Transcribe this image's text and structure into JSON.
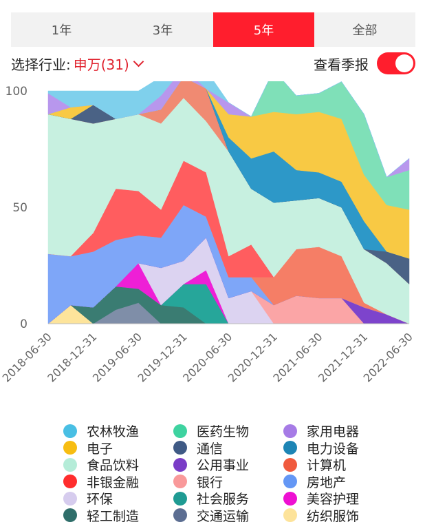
{
  "tabs": [
    {
      "label": "1年",
      "active": false
    },
    {
      "label": "3年",
      "active": false
    },
    {
      "label": "5年",
      "active": true
    },
    {
      "label": "全部",
      "active": false
    }
  ],
  "filter": {
    "label": "选择行业:",
    "industry": "申万(31)",
    "report_label": "查看季报",
    "report_toggle_on": true
  },
  "colors": {
    "accent": "#ff1e2d"
  },
  "chart_data": {
    "type": "area",
    "stacked": true,
    "ylim": [
      0,
      100
    ],
    "yticks": [
      0,
      50,
      100
    ],
    "x": [
      "2018-06-30",
      "2018-09-30",
      "2018-12-31",
      "2019-03-31",
      "2019-06-30",
      "2019-09-30",
      "2019-12-31",
      "2020-03-31",
      "2020-06-30",
      "2020-09-30",
      "2020-12-31",
      "2021-03-31",
      "2021-06-30",
      "2021-09-30",
      "2021-12-31",
      "2022-03-31",
      "2022-06-30"
    ],
    "xticks": [
      "2018-06-30",
      "2018-12-31",
      "2019-06-30",
      "2019-12-31",
      "2020-06-30",
      "2020-12-31",
      "2021-06-30",
      "2021-12-31",
      "2022-06-30"
    ],
    "series": [
      {
        "name": "纺织服饰",
        "color": "#fde49b",
        "values": [
          0,
          8,
          0,
          0,
          0,
          0,
          0,
          0,
          0,
          0,
          0,
          0,
          0,
          0,
          0,
          0,
          0
        ]
      },
      {
        "name": "交通运输",
        "color": "#7f8ea8",
        "values": [
          0,
          0,
          0,
          6,
          9,
          0,
          0,
          0,
          0,
          0,
          0,
          0,
          0,
          0,
          0,
          0,
          0
        ]
      },
      {
        "name": "轻工制造",
        "color": "#3a7c72",
        "values": [
          0,
          0,
          7,
          10,
          6,
          8,
          7,
          0,
          0,
          0,
          0,
          0,
          0,
          0,
          0,
          0,
          0
        ]
      },
      {
        "name": "社会服务",
        "color": "#26a69a",
        "values": [
          0,
          0,
          0,
          0,
          0,
          0,
          10,
          17,
          0,
          0,
          0,
          0,
          0,
          0,
          0,
          0,
          0
        ]
      },
      {
        "name": "美容护理",
        "color": "#ee1fd6",
        "values": [
          0,
          0,
          0,
          0,
          11,
          0,
          0,
          6,
          0,
          0,
          0,
          0,
          0,
          0,
          0,
          0,
          0
        ]
      },
      {
        "name": "环保",
        "color": "#dcd3f1",
        "values": [
          0,
          0,
          0,
          0,
          0,
          16,
          10,
          14,
          11,
          14,
          0,
          0,
          0,
          0,
          0,
          0,
          0
        ]
      },
      {
        "name": "银行",
        "color": "#fba5a6",
        "values": [
          0,
          0,
          0,
          0,
          0,
          0,
          0,
          0,
          0,
          0,
          8,
          12,
          11,
          11,
          0,
          0,
          0
        ]
      },
      {
        "name": "公用事业",
        "color": "#7d44cc",
        "values": [
          0,
          0,
          0,
          0,
          0,
          0,
          0,
          0,
          0,
          0,
          0,
          0,
          0,
          0,
          7,
          4,
          0
        ]
      },
      {
        "name": "房地产",
        "color": "#7ea6f8",
        "values": [
          30,
          21,
          24,
          20,
          12,
          13,
          24,
          9,
          9,
          6,
          0,
          0,
          0,
          0,
          0,
          0,
          0
        ]
      },
      {
        "name": "计算机",
        "color": "#f57e66",
        "values": [
          0,
          0,
          0,
          0,
          0,
          0,
          0,
          0,
          0,
          0,
          12,
          20,
          22,
          18,
          2,
          0,
          0
        ]
      },
      {
        "name": "非银金融",
        "color": "#ff5d5f",
        "values": [
          0,
          0,
          8,
          22,
          19,
          12,
          19,
          19,
          9,
          14,
          0,
          0,
          0,
          0,
          0,
          0,
          0
        ]
      },
      {
        "name": "食品饮料",
        "color": "#c7f0e0",
        "values": [
          60,
          59,
          47,
          30,
          33,
          37,
          27,
          22,
          45,
          24,
          32,
          21,
          21,
          21,
          23,
          22,
          17
        ]
      },
      {
        "name": "计算机(2)",
        "color": "#f08a72",
        "values": [
          0,
          0,
          0,
          0,
          0,
          6,
          9,
          14,
          0,
          0,
          0,
          0,
          0,
          0,
          0,
          0,
          0
        ]
      },
      {
        "name": "通信",
        "color": "#4a6285",
        "values": [
          0,
          0,
          8,
          0,
          0,
          0,
          0,
          0,
          0,
          0,
          0,
          0,
          0,
          0,
          0,
          5,
          11
        ]
      },
      {
        "name": "电力设备",
        "color": "#2d98c8",
        "values": [
          0,
          0,
          0,
          0,
          0,
          0,
          0,
          0,
          6,
          13,
          22,
          13,
          11,
          11,
          12,
          0,
          0
        ]
      },
      {
        "name": "电子",
        "color": "#f8c944",
        "values": [
          0,
          5,
          0,
          0,
          0,
          0,
          0,
          0,
          10,
          18,
          17,
          24,
          26,
          27,
          20,
          20,
          21
        ]
      },
      {
        "name": "医药生物",
        "color": "#7fe0b8",
        "values": [
          0,
          0,
          0,
          0,
          0,
          0,
          0,
          0,
          0,
          0,
          18,
          8,
          8,
          16,
          26,
          12,
          17
        ]
      },
      {
        "name": "家用电器",
        "color": "#b897ed",
        "values": [
          9,
          0,
          0,
          0,
          0,
          6,
          4,
          0,
          5,
          0,
          0,
          0,
          0,
          0,
          0,
          0,
          5
        ]
      },
      {
        "name": "农林牧渔",
        "color": "#7fd0ec",
        "values": [
          1,
          7,
          6,
          12,
          10,
          8,
          1,
          8,
          0,
          0,
          0,
          0,
          0,
          0,
          0,
          0,
          0
        ]
      }
    ]
  },
  "legend": [
    {
      "label": "农林牧渔",
      "color": "#49bfe4"
    },
    {
      "label": "医药生物",
      "color": "#3ed3a0"
    },
    {
      "label": "家用电器",
      "color": "#a67be6"
    },
    {
      "label": "电子",
      "color": "#f7bd12"
    },
    {
      "label": "通信",
      "color": "#3f5a85"
    },
    {
      "label": "电力设备",
      "color": "#1d85b5"
    },
    {
      "label": "食品饮料",
      "color": "#b5ecd8"
    },
    {
      "label": "公用事业",
      "color": "#7a3dc7"
    },
    {
      "label": "计算机",
      "color": "#f05a3e"
    },
    {
      "label": "非银金融",
      "color": "#ff2d2d"
    },
    {
      "label": "银行",
      "color": "#f9999a"
    },
    {
      "label": "房地产",
      "color": "#6497f5"
    },
    {
      "label": "环保",
      "color": "#d6ccee"
    },
    {
      "label": "社会服务",
      "color": "#1f9b93"
    },
    {
      "label": "美容护理",
      "color": "#ee10d2"
    },
    {
      "label": "轻工制造",
      "color": "#2f6e6a"
    },
    {
      "label": "交通运输",
      "color": "#5c6e92"
    },
    {
      "label": "纺织服饰",
      "color": "#fde39a"
    }
  ]
}
